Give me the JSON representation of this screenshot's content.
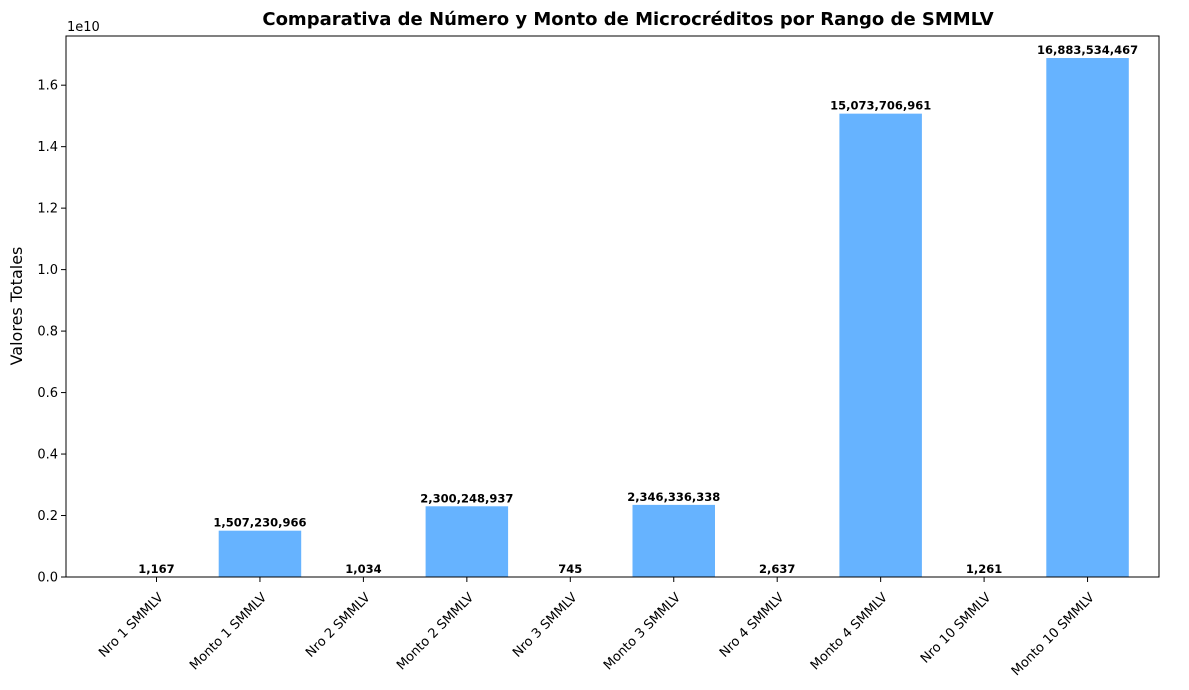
{
  "chart_data": {
    "type": "bar",
    "title": "Comparativa de Número y Monto de Microcréditos por Rango de SMMLV",
    "xlabel": "",
    "ylabel": "Valores Totales",
    "y_offset_label": "1e10",
    "y_scale": 10000000000,
    "ylim": [
      0,
      17600000000
    ],
    "yticks": [
      0,
      2000000000,
      4000000000,
      6000000000,
      8000000000,
      10000000000,
      12000000000,
      14000000000,
      16000000000
    ],
    "ytick_labels": [
      "0.0",
      "0.2",
      "0.4",
      "0.6",
      "0.8",
      "1.0",
      "1.2",
      "1.4",
      "1.6"
    ],
    "categories": [
      "Nro 1 SMMLV",
      "Monto 1 SMMLV",
      "Nro 2 SMMLV",
      "Monto 2 SMMLV",
      "Nro 3 SMMLV",
      "Monto 3 SMMLV",
      "Nro 4 SMMLV",
      "Monto 4 SMMLV",
      "Nro 10 SMMLV",
      "Monto 10 SMMLV"
    ],
    "values": [
      1167,
      1507230966,
      1034,
      2300248937,
      745,
      2346336338,
      2637,
      15073706961,
      1261,
      16883534467
    ],
    "value_labels": [
      "1,167",
      "1,507,230,966",
      "1,034",
      "2,300,248,937",
      "745",
      "2,346,336,338",
      "2,637",
      "15,073,706,961",
      "1,261",
      "16,883,534,467"
    ],
    "bar_color": "#66b3ff",
    "grid": false,
    "legend": "none"
  }
}
